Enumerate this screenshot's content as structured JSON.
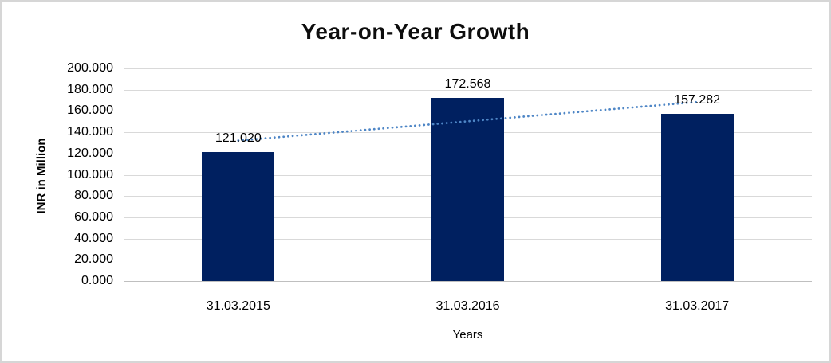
{
  "frame": {
    "background": "#ffffff",
    "border_color": "#d6d6d6"
  },
  "chart_data": {
    "type": "bar",
    "title": "Year-on-Year Growth",
    "xlabel": "Years",
    "ylabel": "INR in Million",
    "categories": [
      "31.03.2015",
      "31.03.2016",
      "31.03.2017"
    ],
    "series": [
      {
        "name": "INR in Million",
        "color": "#002060",
        "values": [
          121.02,
          172.568,
          157.282
        ],
        "data_labels": [
          "121.020",
          "172.568",
          "157.282"
        ]
      }
    ],
    "trendline": {
      "type": "linear",
      "style": "dotted",
      "color": "#4e86c6",
      "fitted_values": [
        132.2,
        150.3,
        168.4
      ]
    },
    "ylim": [
      0,
      200
    ],
    "ytick_step": 20,
    "ytick_labels": [
      "0.000",
      "20.000",
      "40.000",
      "60.000",
      "80.000",
      "100.000",
      "120.000",
      "140.000",
      "160.000",
      "180.000",
      "200.000"
    ],
    "grid": "horizontal",
    "gridline_color": "#d9d9d9",
    "axis_line_color": "#bfbfbf",
    "legend": "none",
    "text_color": "#000000"
  }
}
